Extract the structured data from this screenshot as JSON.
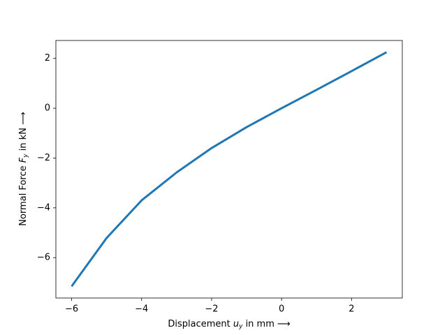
{
  "chart_data": {
    "type": "line",
    "xlabel": [
      "Displacement ",
      "u",
      "y",
      " in mm ⟶"
    ],
    "ylabel": [
      "Normal Force ",
      "F",
      "y",
      " in kN ⟶"
    ],
    "x": [
      -6,
      -5,
      -4,
      -3,
      -2,
      -1,
      0,
      1,
      2,
      3
    ],
    "series": [
      {
        "color": "#1f77b4",
        "values": [
          -7.15,
          -5.21,
          -3.7,
          -2.58,
          -1.6,
          -0.76,
          0,
          0.74,
          1.49,
          2.25
        ]
      }
    ],
    "xlim": [
      -6.45,
      3.45
    ],
    "ylim": [
      -7.62,
      2.72
    ],
    "xticks": [
      {
        "value": -6,
        "label": "−6"
      },
      {
        "value": -4,
        "label": "−4"
      },
      {
        "value": -2,
        "label": "−2"
      },
      0,
      2
    ],
    "yticks": [
      {
        "value": -6,
        "label": "−6"
      },
      {
        "value": -4,
        "label": "−4"
      },
      {
        "value": -2,
        "label": "−2"
      },
      0,
      2
    ]
  }
}
